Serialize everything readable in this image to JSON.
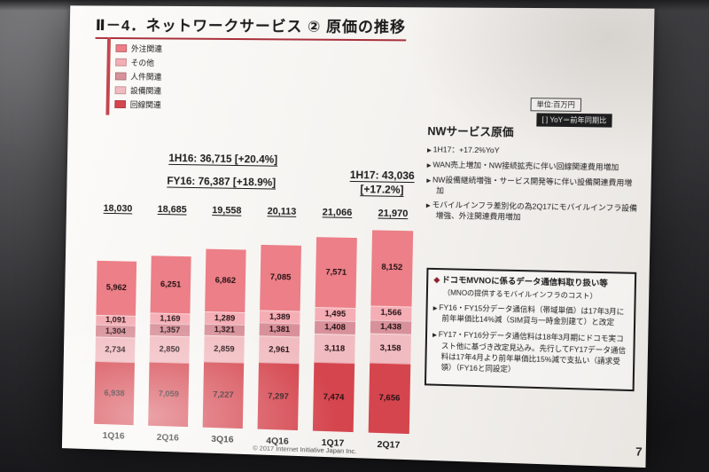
{
  "slide": {
    "title": "Ⅱ－4．ネットワークサービス ② 原価の推移",
    "unit_note": "単位:百万円",
    "yoy_note": "[ ] YoY＝前年同期比",
    "page_number": "7",
    "copyright": "© 2017 Internet Initiative Japan Inc."
  },
  "legend": {
    "items": [
      {
        "label": "外注関連",
        "color": "#ec7f87"
      },
      {
        "label": "その他",
        "color": "#f5aeb5"
      },
      {
        "label": "人件関連",
        "color": "#d8919a"
      },
      {
        "label": "設備関連",
        "color": "#f1bcc1"
      },
      {
        "label": "回線関連",
        "color": "#d5454e"
      }
    ]
  },
  "chart_data": {
    "type": "bar",
    "stacked": true,
    "categories": [
      "1Q16",
      "2Q16",
      "3Q16",
      "4Q16",
      "1Q17",
      "2Q17"
    ],
    "series": [
      {
        "name": "外注関連",
        "values": [
          5962,
          6251,
          6862,
          7085,
          7571,
          8152
        ]
      },
      {
        "name": "その他",
        "values": [
          1091,
          1169,
          1289,
          1389,
          1495,
          1566
        ]
      },
      {
        "name": "人件関連",
        "values": [
          1304,
          1357,
          1321,
          1381,
          1408,
          1438
        ]
      },
      {
        "name": "設備関連",
        "values": [
          2734,
          2850,
          2859,
          2961,
          3118,
          3158
        ]
      },
      {
        "name": "回線関連",
        "values": [
          6938,
          7059,
          7227,
          7297,
          7474,
          7656
        ]
      }
    ],
    "totals": [
      "18,030",
      "18,685",
      "19,558",
      "20,113",
      "21,066",
      "21,970"
    ],
    "annotations": [
      "1H16: 36,715 [+20.4%]",
      "FY16: 76,387 [+18.9%]",
      "1H17: 43,036",
      "[+17.2%]"
    ],
    "unit": "百万円",
    "ylim": [
      0,
      22000
    ],
    "grid": false,
    "legend_position": "top-left"
  },
  "right_panel": {
    "heading": "NWサービス原価",
    "bullets": [
      "1H17：+17.2%YoY",
      "WAN売上増加・NW接続拡売に伴い回線関連費用増加",
      "NW設備継続増強・サービス開発等に伴い設備関連費用増加",
      "モバイルインフラ差別化の為2Q17にモバイルインフラ設備増強、外注関連費用増加"
    ],
    "box": {
      "marker": "◆",
      "heading": "ドコモMVNOに係るデータ通信料取り扱い等",
      "subheading": "（MNOの提供するモバイルインフラのコスト）",
      "bullets": [
        "FY16・FY15分データ通信料（帯域単価）は17年3月に前年単価比14%減（SIM貸与一時金別建て）と改定",
        "FY17・FY16分データ通信料は18年3月期にドコモ実コスト他に基づき改定見込み。先行してFY17データ通信料は17年4月より前年単価比15%減で支払い（請求受領）（FY16と同設定）"
      ]
    }
  }
}
